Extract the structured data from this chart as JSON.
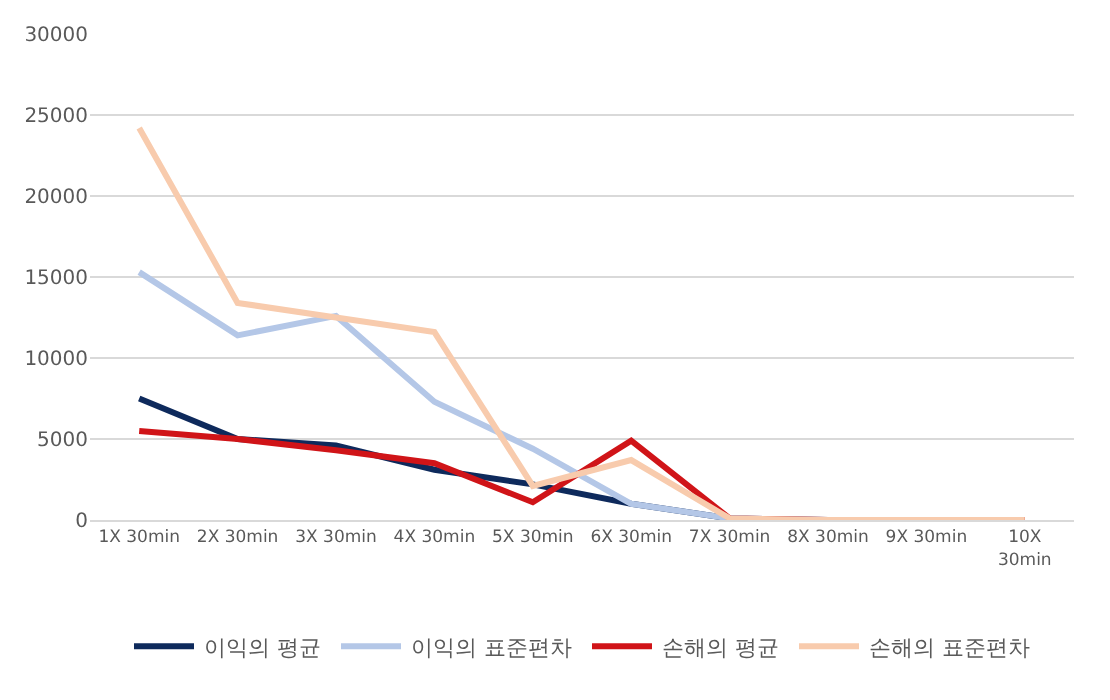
{
  "chart_data": {
    "type": "line",
    "categories": [
      "1X 30min",
      "2X 30min",
      "3X 30min",
      "4X 30min",
      "5X 30min",
      "6X 30min",
      "7X 30min",
      "8X 30min",
      "9X 30min",
      "10X 30min"
    ],
    "series": [
      {
        "name": "이익의 평균",
        "color": "#0e2a5c",
        "values": [
          7500,
          5000,
          4600,
          3100,
          2200,
          1000,
          100,
          0,
          null,
          null
        ]
      },
      {
        "name": "이익의 표준편차",
        "color": "#b4c7e7",
        "values": [
          15300,
          11400,
          12600,
          7300,
          4400,
          1000,
          100,
          0,
          0,
          0
        ]
      },
      {
        "name": "손해의 평균",
        "color": "#d01418",
        "values": [
          5500,
          5000,
          4300,
          3500,
          1100,
          4900,
          100,
          0,
          0,
          0
        ]
      },
      {
        "name": "손해의 표준편차",
        "color": "#f8cbad",
        "values": [
          24200,
          13400,
          12500,
          11600,
          2100,
          3700,
          100,
          0,
          0,
          0
        ]
      }
    ],
    "ylim": [
      0,
      30000
    ],
    "yticks": [
      0,
      5000,
      10000,
      15000,
      20000,
      25000,
      30000
    ],
    "grid": "y",
    "legend": "bottom",
    "marker": "none",
    "line_style": "solid"
  }
}
